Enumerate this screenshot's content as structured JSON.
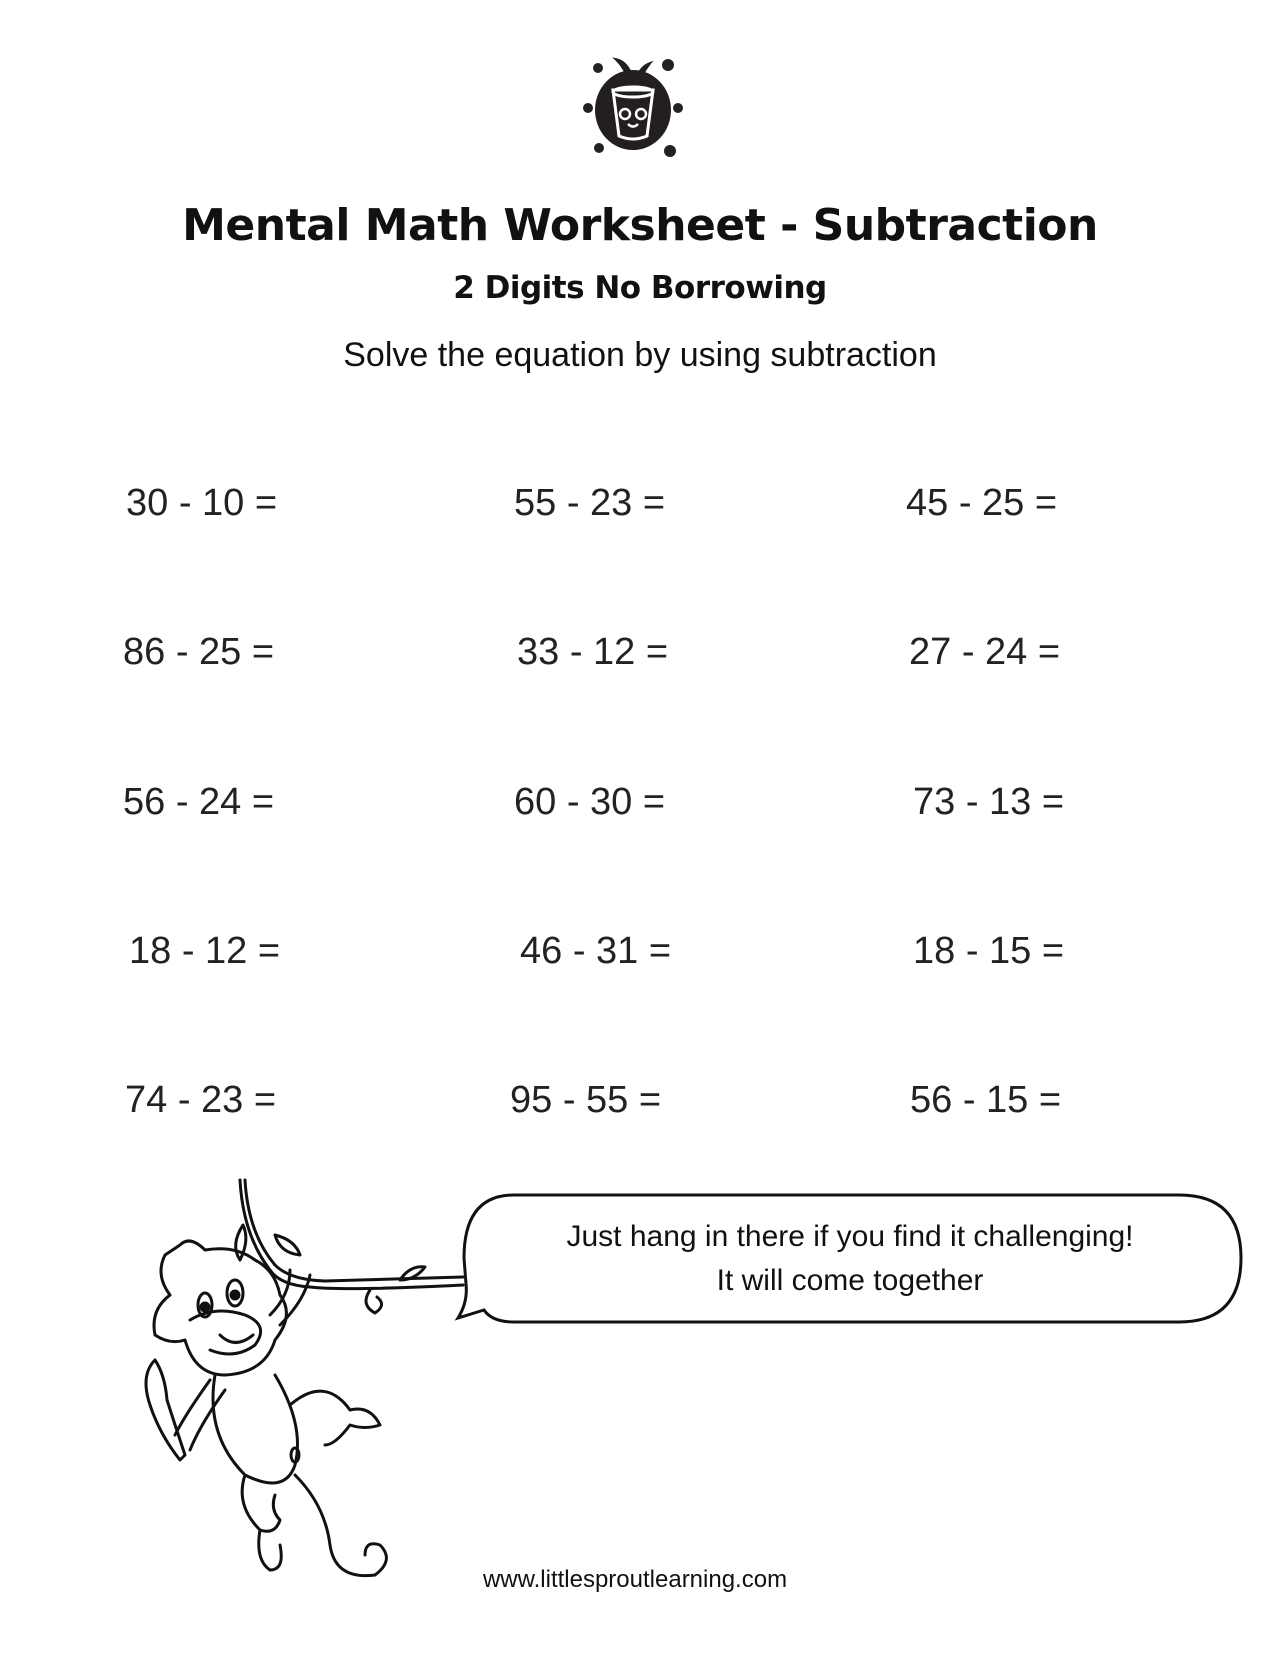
{
  "header": {
    "logo_icon": "sprout-pot-logo-icon",
    "title": "Mental Math Worksheet - Subtraction",
    "subtitle": "2 Digits No Borrowing",
    "instruction": "Solve the equation by using subtraction"
  },
  "problems": [
    [
      "30 - 10 =",
      "55 - 23 =",
      "45 - 25 ="
    ],
    [
      "86 - 25 =",
      "33 - 12 =",
      "27 - 24 ="
    ],
    [
      "56 - 24 =",
      "60 - 30 =",
      "73 - 13 ="
    ],
    [
      "18 - 12 =",
      "46 - 31 =",
      "18 - 15 ="
    ],
    [
      "74 - 23 =",
      "95 - 55 =",
      "56 - 15 ="
    ]
  ],
  "speech_bubble": {
    "line1": "Just hang in there if you find it challenging!",
    "line2": "It will come together"
  },
  "illustration": "monkey-hanging-from-vine",
  "footer": {
    "url": "www.littlesproutlearning.com"
  }
}
